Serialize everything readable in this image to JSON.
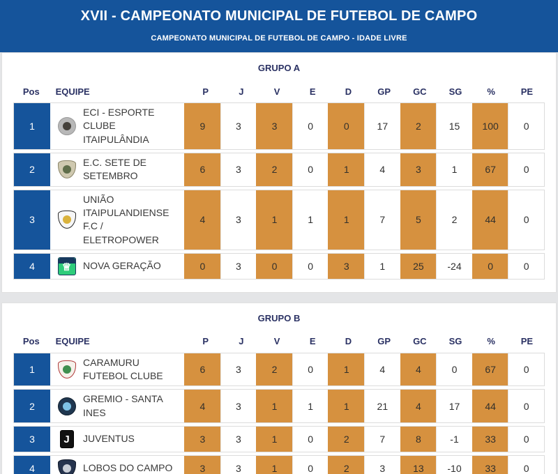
{
  "header": {
    "title": "XVII - CAMPEONATO MUNICIPAL DE FUTEBOL DE CAMPO",
    "subtitle": "CAMPEONATO MUNICIPAL DE FUTEBOL DE CAMPO - IDADE LIVRE"
  },
  "colors": {
    "header_bg": "#15549b",
    "position_badge_bg": "#15549b",
    "highlight_cell_bg": "#d6913f",
    "group_title_text": "#2a3163"
  },
  "table": {
    "pos_label": "Pos",
    "team_label": "EQUIPE",
    "stat_columns": [
      {
        "label": "P",
        "highlight": true
      },
      {
        "label": "J",
        "highlight": false
      },
      {
        "label": "V",
        "highlight": true
      },
      {
        "label": "E",
        "highlight": false
      },
      {
        "label": "D",
        "highlight": true
      },
      {
        "label": "GP",
        "highlight": false
      },
      {
        "label": "GC",
        "highlight": true
      },
      {
        "label": "SG",
        "highlight": false
      },
      {
        "label": "%",
        "highlight": true
      },
      {
        "label": "PE",
        "highlight": false
      }
    ]
  },
  "groups": [
    {
      "title": "GRUPO A",
      "rows": [
        {
          "pos": "1",
          "team": "ECI - ESPORTE\nCLUBE\nITAIPULÂNDIA",
          "stats": [
            "9",
            "3",
            "3",
            "0",
            "0",
            "17",
            "2",
            "15",
            "100",
            "0"
          ],
          "logo": {
            "shape": "circle",
            "bg": "#b8b8b8",
            "border": "#999999",
            "band": "#45413b",
            "glyph": "",
            "glyph_color": ""
          }
        },
        {
          "pos": "2",
          "team": "E.C. SETE DE\nSETEMBRO",
          "stats": [
            "6",
            "3",
            "2",
            "0",
            "1",
            "4",
            "3",
            "1",
            "67",
            "0"
          ],
          "logo": {
            "shape": "shield",
            "bg": "#cfc9b0",
            "border": "#8a8468",
            "band": "#5f6e4a",
            "glyph": "",
            "glyph_color": ""
          }
        },
        {
          "pos": "3",
          "team": "UNIÃO\nITAIPULANDIENSE\nF.C / ELETROPOWER",
          "stats": [
            "4",
            "3",
            "1",
            "1",
            "1",
            "7",
            "5",
            "2",
            "44",
            "0"
          ],
          "logo": {
            "shape": "shield",
            "bg": "#f6f6f6",
            "border": "#2b2b2b",
            "band": "#d9b23c",
            "glyph": "",
            "glyph_color": ""
          }
        },
        {
          "pos": "4",
          "team": "NOVA GERAÇÃO",
          "stats": [
            "0",
            "3",
            "0",
            "0",
            "3",
            "1",
            "25",
            "-24",
            "0",
            "0"
          ],
          "logo": {
            "shape": "square",
            "bg": "#2ecc7a",
            "border": "#17395e",
            "band": "#17395e",
            "glyph": "♕",
            "glyph_color": "#ffffff"
          }
        }
      ]
    },
    {
      "title": "GRUPO B",
      "rows": [
        {
          "pos": "1",
          "team": "CARAMURU\nFUTEBOL CLUBE",
          "stats": [
            "6",
            "3",
            "2",
            "0",
            "1",
            "4",
            "4",
            "0",
            "67",
            "0"
          ],
          "logo": {
            "shape": "shield",
            "bg": "#f5f1ea",
            "border": "#b03a3a",
            "band": "#3f8f4f",
            "glyph": "",
            "glyph_color": ""
          }
        },
        {
          "pos": "2",
          "team": "GREMIO - SANTA\nINES",
          "stats": [
            "4",
            "3",
            "1",
            "1",
            "1",
            "21",
            "4",
            "17",
            "44",
            "0"
          ],
          "logo": {
            "shape": "circle",
            "bg": "#1f3750",
            "border": "#12202f",
            "band": "#7ec3e6",
            "glyph": "",
            "glyph_color": ""
          }
        },
        {
          "pos": "3",
          "team": "JUVENTUS",
          "stats": [
            "3",
            "3",
            "1",
            "0",
            "2",
            "7",
            "8",
            "-1",
            "33",
            "0"
          ],
          "logo": {
            "shape": "rect",
            "bg": "#111111",
            "border": "#000000",
            "band": "",
            "glyph": "J",
            "glyph_color": "#ffffff"
          }
        },
        {
          "pos": "4",
          "team": "LOBOS DO CAMPO",
          "stats": [
            "3",
            "3",
            "1",
            "0",
            "2",
            "3",
            "13",
            "-10",
            "33",
            "0"
          ],
          "logo": {
            "shape": "shield",
            "bg": "#25334d",
            "border": "#111a2b",
            "band": "#c8cdd6",
            "glyph": "",
            "glyph_color": ""
          }
        }
      ]
    }
  ]
}
